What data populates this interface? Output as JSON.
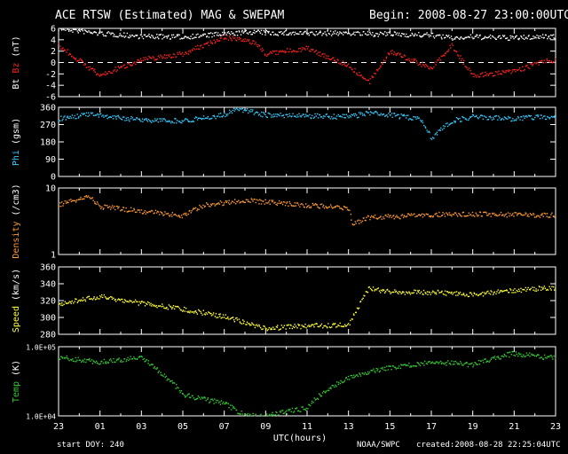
{
  "header": {
    "title": "ACE RTSW (Estimated) MAG & SWEPAM",
    "begin": "Begin: 2008-08-27 23:00:00UTC"
  },
  "footer": {
    "start_doy": "start DOY: 240",
    "agency": "NOAA/SWPC",
    "created": "created:2008-08-28 22:25:04UTC"
  },
  "colors": {
    "bt": "#ffffff",
    "bz": "#ff2020",
    "phi": "#33ccff",
    "density": "#ff9933",
    "speed": "#ffff33",
    "temp": "#33cc33",
    "axis": "#ffffff",
    "background": "#000000"
  },
  "chart_data": [
    {
      "type": "scatter",
      "ylabel_parts": [
        {
          "text": "Bt",
          "color": "#ffffff"
        },
        {
          "text": " Bz",
          "color": "#ff2020"
        },
        {
          "text": " (nT)",
          "color": "#ffffff"
        }
      ],
      "yticks": [
        "6",
        "4",
        "2",
        "0",
        "-2",
        "-4",
        "-6"
      ],
      "ylim": [
        -6,
        6
      ],
      "zero_line": true,
      "x": [
        0,
        2,
        4,
        6,
        8,
        9.5,
        10,
        12,
        14,
        15,
        16,
        18,
        19,
        20,
        22,
        23.5
      ],
      "series": [
        {
          "name": "Bt",
          "color": "#ffffff",
          "values": [
            6,
            5.1,
            4.6,
            4.5,
            5,
            5.4,
            5.2,
            5.1,
            5.2,
            5,
            5,
            4.8,
            4.3,
            4.5,
            4.3,
            4.6
          ]
        },
        {
          "name": "Bz",
          "color": "#ff2020",
          "values": [
            3,
            -2.3,
            0.5,
            1.5,
            4.5,
            3.5,
            1.5,
            2.5,
            -0.5,
            -3.5,
            2,
            -1,
            3,
            -2.3,
            -1.6,
            0.3
          ]
        }
      ]
    },
    {
      "type": "scatter",
      "ylabel_parts": [
        {
          "text": "Phi",
          "color": "#33ccff"
        },
        {
          "text": " (gsm)",
          "color": "#ffffff"
        }
      ],
      "yticks": [
        "360",
        "270",
        "180",
        "90",
        "0"
      ],
      "ylim": [
        0,
        360
      ],
      "x": [
        0,
        1.5,
        2,
        4,
        6,
        8,
        8.5,
        9,
        10,
        12,
        14,
        15,
        16,
        17.5,
        18,
        19,
        20,
        22,
        23.5
      ],
      "series": [
        {
          "name": "Phi",
          "color": "#33ccff",
          "values": [
            300,
            325,
            315,
            295,
            290,
            320,
            345,
            345,
            320,
            315,
            310,
            330,
            320,
            300,
            200,
            290,
            310,
            300,
            310
          ]
        }
      ]
    },
    {
      "type": "scatter",
      "ylabel_parts": [
        {
          "text": "Density",
          "color": "#ff9933"
        },
        {
          "text": " (/cm3)",
          "color": "#ffffff"
        }
      ],
      "yticks": [
        "10",
        "1"
      ],
      "ylim": [
        1,
        10
      ],
      "yscale": "log",
      "x": [
        0,
        1.5,
        2,
        4,
        6,
        7,
        9,
        12,
        14,
        14.2,
        15,
        17,
        19,
        21,
        23.5
      ],
      "series": [
        {
          "name": "Density",
          "color": "#ff9933",
          "values": [
            5.5,
            7.5,
            5.2,
            4.5,
            3.8,
            5.5,
            6.5,
            5.5,
            5,
            2.8,
            3.6,
            3.8,
            4.1,
            4,
            3.9
          ]
        }
      ]
    },
    {
      "type": "scatter",
      "ylabel_parts": [
        {
          "text": "Speed",
          "color": "#ffff33"
        },
        {
          "text": " (km/s)",
          "color": "#ffffff"
        }
      ],
      "yticks": [
        "360",
        "340",
        "320",
        "300",
        "280"
      ],
      "ylim": [
        280,
        360
      ],
      "x": [
        0,
        2,
        4,
        6,
        8,
        10,
        12,
        14,
        15,
        16,
        18,
        20,
        22,
        23.5
      ],
      "series": [
        {
          "name": "Speed",
          "color": "#ffff33",
          "values": [
            316,
            325,
            317,
            310,
            301,
            287,
            290,
            291,
            335,
            330,
            330,
            327,
            332,
            335
          ]
        }
      ]
    },
    {
      "type": "scatter",
      "ylabel_parts": [
        {
          "text": "Temp",
          "color": "#33cc33"
        },
        {
          "text": " (K)",
          "color": "#ffffff"
        }
      ],
      "yticks": [
        "1.0E+05",
        "1.0E+04"
      ],
      "ylim": [
        10000,
        100000
      ],
      "yscale": "log",
      "x": [
        0,
        2,
        4,
        5,
        6,
        8,
        9,
        10,
        12,
        14,
        16,
        18,
        20,
        22,
        23.5
      ],
      "series": [
        {
          "name": "Temp",
          "color": "#33cc33",
          "values": [
            70000,
            60000,
            70000,
            40000,
            20000,
            15000,
            10000,
            10000,
            13000,
            35000,
            50000,
            60000,
            55000,
            80000,
            70000
          ]
        }
      ]
    }
  ],
  "xaxis": {
    "label": "UTC(hours)",
    "ticks": [
      "23",
      "01",
      "03",
      "05",
      "07",
      "09",
      "11",
      "13",
      "15",
      "17",
      "19",
      "21",
      "23"
    ],
    "range_hours": [
      0,
      24
    ]
  }
}
